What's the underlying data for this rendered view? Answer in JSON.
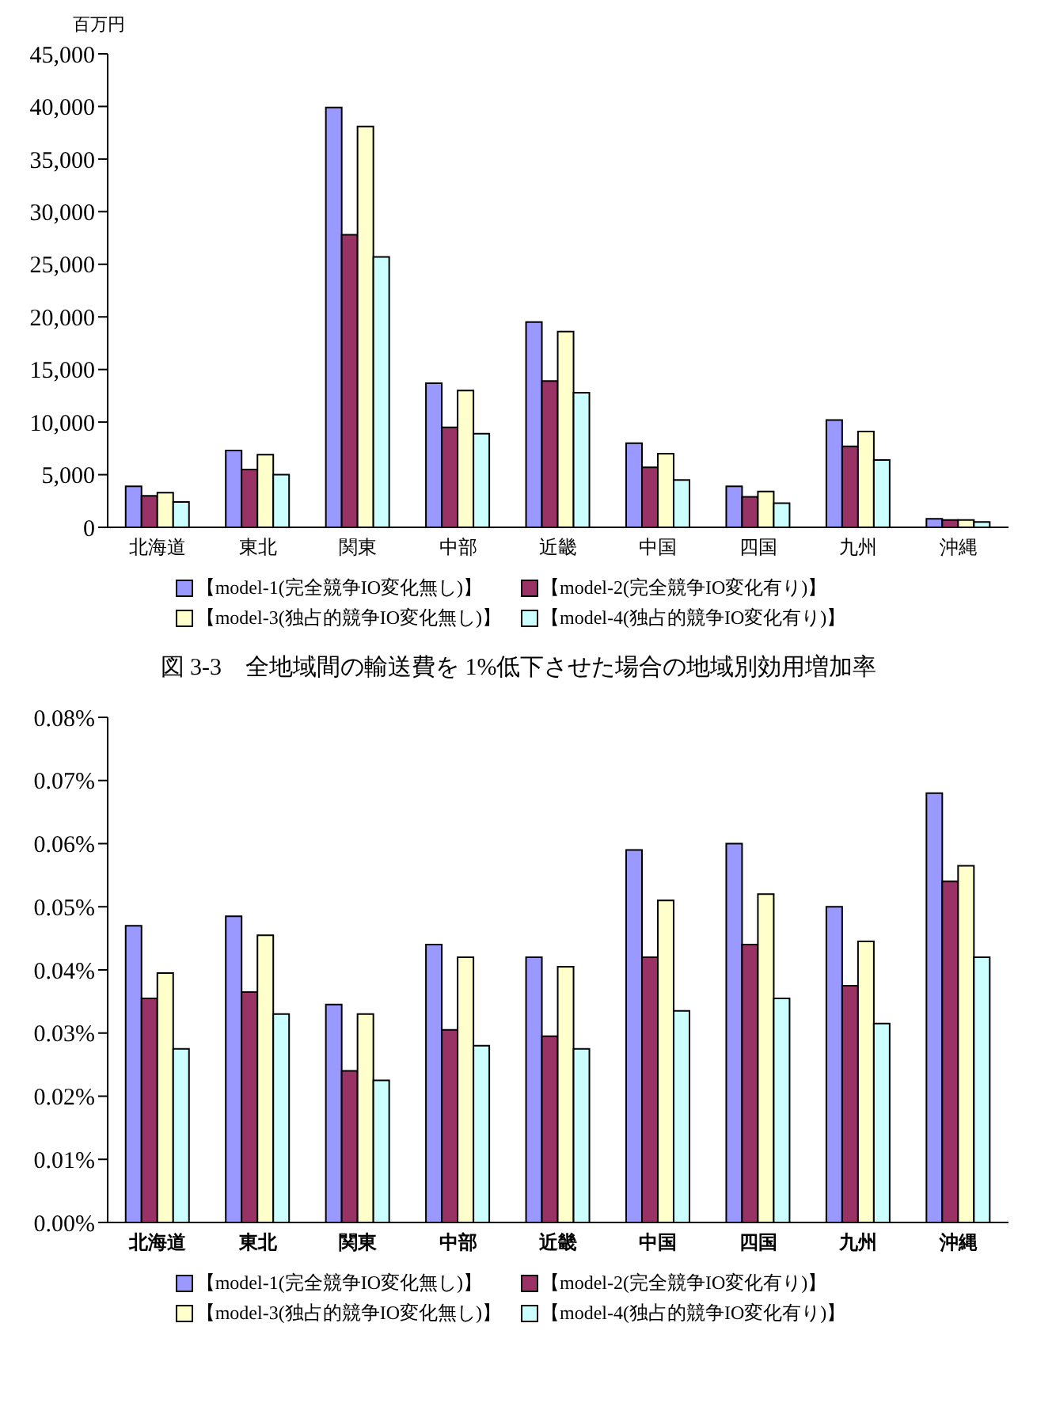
{
  "chart_data": [
    {
      "type": "bar",
      "ylabel": "百万円",
      "categories": [
        "北海道",
        "東北",
        "関東",
        "中部",
        "近畿",
        "中国",
        "四国",
        "九州",
        "沖縄"
      ],
      "series": [
        {
          "name": "【model-1(完全競争IO変化無し)】",
          "color": "#9999ff",
          "values": [
            3900,
            7300,
            39900,
            13700,
            19500,
            8000,
            3900,
            10200,
            800
          ]
        },
        {
          "name": "【model-2(完全競争IO変化有り)】",
          "color": "#993366",
          "values": [
            3000,
            5500,
            27800,
            9500,
            13900,
            5700,
            2900,
            7700,
            700
          ]
        },
        {
          "name": "【model-3(独占的競争IO変化無し)】",
          "color": "#ffffcc",
          "values": [
            3300,
            6900,
            38100,
            13000,
            18600,
            7000,
            3400,
            9100,
            700
          ]
        },
        {
          "name": "【model-4(独占的競争IO変化有り)】",
          "color": "#ccffff",
          "values": [
            2400,
            5000,
            25700,
            8900,
            12800,
            4500,
            2300,
            6400,
            500
          ]
        }
      ],
      "ylim": [
        0,
        45000
      ],
      "yticks": [
        0,
        {
          "value": 5000,
          "label": "5,000"
        },
        {
          "value": 10000,
          "label": "10,000"
        },
        {
          "value": 15000,
          "label": "15,000"
        },
        {
          "value": 20000,
          "label": "20,000"
        },
        {
          "value": 25000,
          "label": "25,000"
        },
        {
          "value": 30000,
          "label": "30,000"
        },
        {
          "value": 35000,
          "label": "35,000"
        },
        {
          "value": 40000,
          "label": "40,000"
        },
        {
          "value": 45000,
          "label": "45,000"
        }
      ],
      "grid": false,
      "legend": "bottom"
    },
    {
      "type": "bar",
      "title": "図 3-3　全地域間の輸送費を 1%低下させた場合の地域別効用増加率",
      "categories": [
        "北海道",
        "東北",
        "関東",
        "中部",
        "近畿",
        "中国",
        "四国",
        "九州",
        "沖縄"
      ],
      "series": [
        {
          "name": "【model-1(完全競争IO変化無し)】",
          "color": "#9999ff",
          "values": [
            0.047,
            0.0485,
            0.0345,
            0.044,
            0.042,
            0.059,
            0.06,
            0.05,
            0.068
          ]
        },
        {
          "name": "【model-2(完全競争IO変化有り)】",
          "color": "#993366",
          "values": [
            0.0355,
            0.0365,
            0.024,
            0.0305,
            0.0295,
            0.042,
            0.044,
            0.0375,
            0.054
          ]
        },
        {
          "name": "【model-3(独占的競争IO変化無し)】",
          "color": "#ffffcc",
          "values": [
            0.0395,
            0.0455,
            0.033,
            0.042,
            0.0405,
            0.051,
            0.052,
            0.0445,
            0.0565
          ]
        },
        {
          "name": "【model-4(独占的競争IO変化有り)】",
          "color": "#ccffff",
          "values": [
            0.0275,
            0.033,
            0.0225,
            0.028,
            0.0275,
            0.0335,
            0.0355,
            0.0315,
            0.042
          ]
        }
      ],
      "ylim": [
        0,
        0.08
      ],
      "yticks": [
        {
          "value": 0,
          "label": "0.00%"
        },
        {
          "value": 0.01,
          "label": "0.01%"
        },
        {
          "value": 0.02,
          "label": "0.02%"
        },
        {
          "value": 0.03,
          "label": "0.03%"
        },
        {
          "value": 0.04,
          "label": "0.04%"
        },
        {
          "value": 0.05,
          "label": "0.05%"
        },
        {
          "value": 0.06,
          "label": "0.06%"
        },
        {
          "value": 0.07,
          "label": "0.07%"
        },
        {
          "value": 0.08,
          "label": "0.08%"
        }
      ],
      "grid": false,
      "legend": "bottom"
    }
  ]
}
